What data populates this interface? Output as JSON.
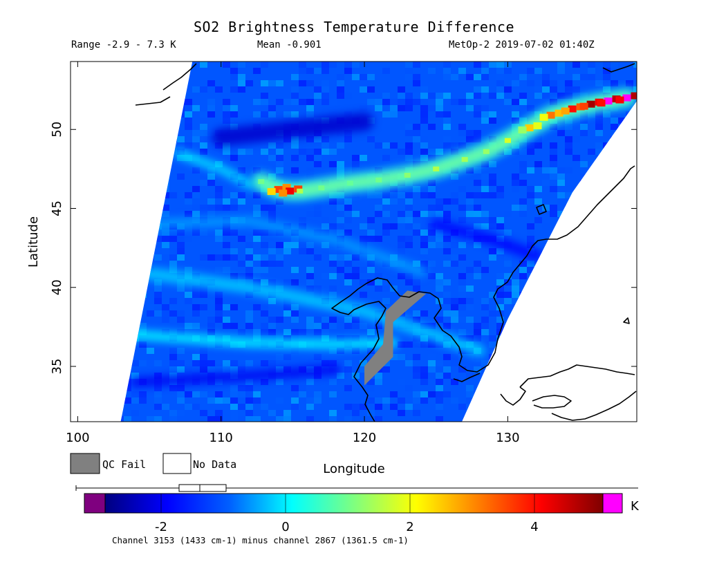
{
  "header": {
    "title": "SO2 Brightness Temperature Difference",
    "range_text": "Range -2.9 - 7.3 K",
    "mean_text": "Mean -0.901",
    "satellite_time": "MetOp-2 2019-07-02 01:40Z"
  },
  "legend": {
    "qc_fail_label": "QC Fail",
    "no_data_label": "No Data",
    "qc_fail_color": "#808080",
    "no_data_color": "#ffffff"
  },
  "colorbar": {
    "unit": "K",
    "min": -2.9,
    "max": 5.1,
    "ticks": [
      "-2",
      "0",
      "2",
      "4"
    ],
    "tick_values": [
      -2,
      0,
      2,
      4
    ],
    "under_color": "#7f007f",
    "over_color": "#ff00ff",
    "stops": [
      "#00007f",
      "#0000ff",
      "#0060ff",
      "#00ffff",
      "#7fff7f",
      "#ffff00",
      "#ff7f00",
      "#ff0000",
      "#7f0000"
    ],
    "footnote": "Channel 3153 (1433 cm-1) minus channel 2867 (1361.5 cm-1)"
  },
  "chart_data": {
    "type": "heatmap",
    "title": "SO2 Brightness Temperature Difference",
    "xlabel": "Longitude",
    "ylabel": "Latitude",
    "xlim": [
      99.5,
      139
    ],
    "ylim": [
      31.5,
      54.3
    ],
    "x_ticks": [
      100,
      110,
      120,
      130
    ],
    "y_ticks": [
      35,
      40,
      45,
      50
    ],
    "x_tick_labels": [
      "100",
      "110",
      "120",
      "130"
    ],
    "y_tick_labels": [
      "35",
      "40",
      "45",
      "50"
    ],
    "swath": {
      "west_edge": [
        [
          103,
          31.5
        ],
        [
          108,
          54.3
        ]
      ],
      "east_edge": [
        [
          126.8,
          31.5
        ],
        [
          130,
          38
        ],
        [
          134.5,
          46
        ],
        [
          139,
          51.8
        ]
      ]
    },
    "background_value": -1.0,
    "plume": [
      [
        112.8,
        46.7,
        1.0
      ],
      [
        114.0,
        46.2,
        3.6
      ],
      [
        114.8,
        46.1,
        4.2
      ],
      [
        115.5,
        46.1,
        1.5
      ],
      [
        117,
        46.3,
        1.0
      ],
      [
        119,
        46.6,
        0.9
      ],
      [
        121,
        46.8,
        1.0
      ],
      [
        123,
        47.1,
        1.2
      ],
      [
        125,
        47.5,
        1.5
      ],
      [
        127,
        48.1,
        1.4
      ],
      [
        128.5,
        48.6,
        1.3
      ],
      [
        130,
        49.3,
        1.8
      ],
      [
        131.5,
        50.1,
        2.5
      ],
      [
        133,
        50.9,
        3.2
      ],
      [
        134.5,
        51.3,
        4.0
      ],
      [
        135.8,
        51.6,
        4.8
      ],
      [
        137,
        51.8,
        5.2
      ],
      [
        138.3,
        52.0,
        5.3
      ]
    ],
    "qc_fail_regions": [
      [
        [
          120,
          33.8
        ],
        [
          122,
          35.6
        ],
        [
          122,
          37.8
        ],
        [
          124.3,
          39.6
        ],
        [
          123,
          39.8
        ],
        [
          121.5,
          38.5
        ],
        [
          121.3,
          36.4
        ],
        [
          120,
          35
        ]
      ]
    ]
  }
}
